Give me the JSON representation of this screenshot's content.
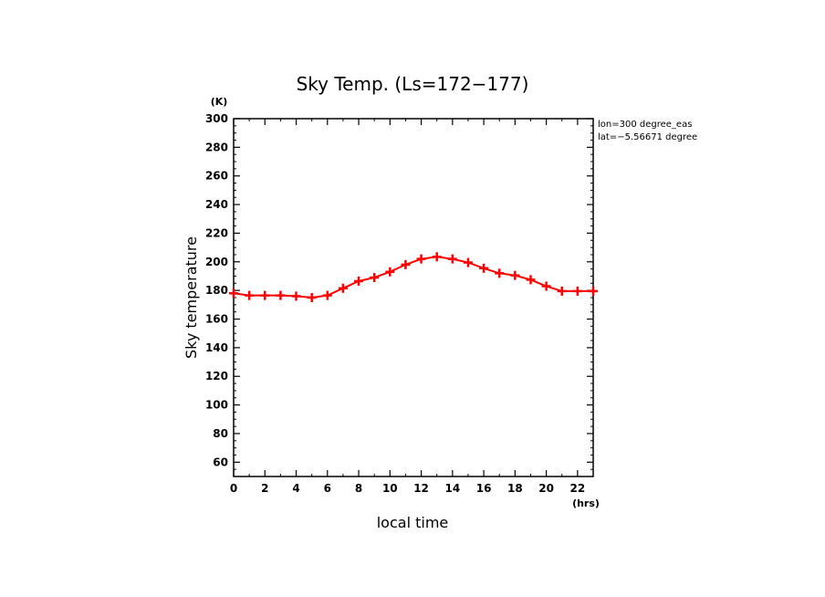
{
  "chart_data": {
    "type": "line",
    "title": "Sky Temp. (Ls=172−177)",
    "xlabel": "local time",
    "ylabel": "Sky temperature",
    "x_unit": "(hrs)",
    "y_unit": "(K)",
    "xlim": [
      0,
      23
    ],
    "ylim": [
      50,
      300
    ],
    "x_ticks": [
      0,
      2,
      4,
      6,
      8,
      10,
      12,
      14,
      16,
      18,
      20,
      22
    ],
    "y_ticks": [
      60,
      80,
      100,
      120,
      140,
      160,
      180,
      200,
      220,
      240,
      260,
      280,
      300
    ],
    "annotations": [
      "lon=300 degree_eas",
      "lat=−5.56671 degree"
    ],
    "grid": false,
    "series": [
      {
        "color": "#ff0000",
        "marker": "plus",
        "x": [
          0,
          1,
          2,
          3,
          4,
          5,
          6,
          7,
          8,
          9,
          10,
          11,
          12,
          13,
          14,
          15,
          16,
          17,
          18,
          19,
          20,
          21,
          22,
          23
        ],
        "values": [
          178,
          176.5,
          176.5,
          176.5,
          176,
          175,
          176.5,
          181.5,
          186.5,
          189,
          193,
          198,
          202,
          203.5,
          202,
          199.5,
          195.5,
          192,
          190.5,
          187.5,
          183,
          179.5,
          179.5,
          179.5
        ]
      }
    ]
  }
}
